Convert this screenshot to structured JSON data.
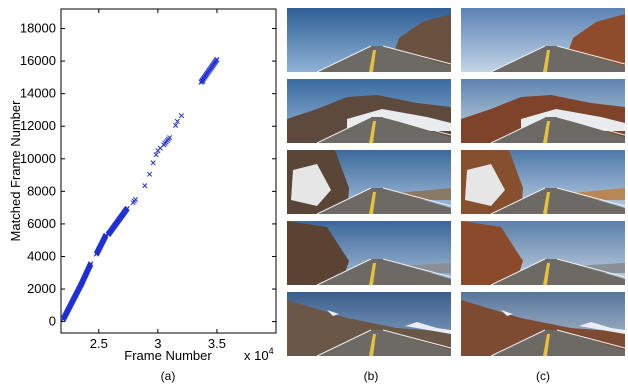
{
  "chart_data": {
    "type": "scatter",
    "marker": "x",
    "marker_color": "#1f2fd6",
    "xlabel": "Frame Number",
    "ylabel": "Matched Frame Number",
    "x_multiplier_label": "x 10",
    "x_multiplier_exp": "4",
    "xlim": [
      2.18,
      4.0
    ],
    "ylim": [
      -700,
      19200
    ],
    "xticks": [
      "2.5",
      "3",
      "3.5"
    ],
    "xtick_values": [
      2.5,
      3.0,
      3.5
    ],
    "yticks": [
      "0",
      "2000",
      "4000",
      "6000",
      "8000",
      "10000",
      "12000",
      "14000",
      "16000",
      "18000"
    ],
    "ytick_values": [
      0,
      2000,
      4000,
      6000,
      8000,
      10000,
      12000,
      14000,
      16000,
      18000
    ],
    "grid": false,
    "segments": [
      {
        "x_start": 2.2,
        "x_end": 2.352,
        "y_start": 150,
        "y_end": 2300,
        "count": 46
      },
      {
        "x_start": 2.352,
        "x_end": 2.432,
        "y_start": 2300,
        "y_end": 3550,
        "count": 28
      },
      {
        "x_start": 2.48,
        "x_end": 2.56,
        "y_start": 4150,
        "y_end": 5300,
        "count": 26
      },
      {
        "x_start": 2.58,
        "x_end": 2.74,
        "y_start": 5350,
        "y_end": 6950,
        "count": 42
      },
      {
        "x_start": 2.79,
        "x_end": 2.81,
        "y_start": 7300,
        "y_end": 7500,
        "count": 3
      },
      {
        "x_start": 3.05,
        "x_end": 3.1,
        "y_start": 10850,
        "y_end": 11300,
        "count": 6
      },
      {
        "x_start": 3.365,
        "x_end": 3.5,
        "y_start": 14700,
        "y_end": 16100,
        "count": 24
      }
    ],
    "points": [
      [
        2.89,
        8350
      ],
      [
        2.93,
        9050
      ],
      [
        2.96,
        9750
      ],
      [
        2.985,
        10250
      ],
      [
        3.0,
        10500
      ],
      [
        3.02,
        10650
      ],
      [
        3.15,
        12050
      ],
      [
        3.165,
        12300
      ],
      [
        3.2,
        12650
      ],
      [
        3.38,
        14750
      ]
    ]
  },
  "captions": {
    "a": "(a)",
    "b": "(b)",
    "c": "(c)"
  },
  "photos": {
    "b": [
      "road-mountain-scene",
      "road-snowbank-scene",
      "road-snow-cliff-scene",
      "road-rocky-slope-scene",
      "road-snowy-peaks-scene"
    ],
    "c": [
      "road-mountain-scene",
      "road-snowbank-scene",
      "road-snow-cliff-scene",
      "road-rocky-slope-scene",
      "road-snowy-peaks-scene"
    ]
  }
}
